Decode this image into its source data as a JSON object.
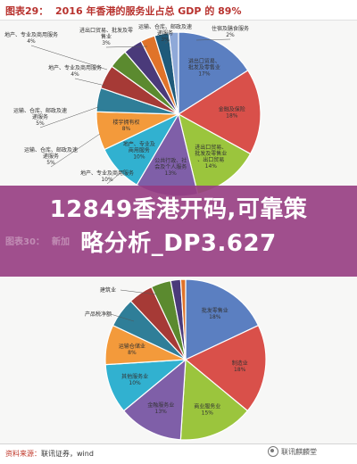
{
  "header": {
    "figure_label": "图表29：",
    "figure_title": "2016 年香港的服务业占总 GDP 的 89%"
  },
  "banner": {
    "line1": "12849香港开码,可靠策",
    "line2": "略分析_DP3.627"
  },
  "second_header": {
    "figure_label": "图表30：",
    "figure_title": "新加"
  },
  "footer": {
    "source_label": "资料来源：",
    "source_text": "联讯证券，wind",
    "watermark": "联讯麒麟堂"
  },
  "chart_data": [
    {
      "type": "pie",
      "title": "2016 年香港的服务业占总 GDP 的 89%",
      "slices": [
        {
          "label": "进出口贸易、批发及零售业",
          "value": 17,
          "value_label": "17%",
          "color": "#5b7fc1"
        },
        {
          "label": "金融及保险",
          "value": 18,
          "value_label": "18%",
          "color": "#d9504a"
        },
        {
          "label": "进出口贸易、批发及零售业、出口贸易",
          "value": 14,
          "value_label": "14%",
          "color": "#9bc53d"
        },
        {
          "label": "公共行政、社会及个人服务",
          "value": 13,
          "value_label": "13%",
          "color": "#7f5fa8"
        },
        {
          "label": "地产、专业及商用服务",
          "value": 10,
          "value_label": "10%",
          "color": "#31b1d0"
        },
        {
          "label": "楼宇拥有权",
          "value": 8,
          "value_label": "8%",
          "color": "#f39a3b"
        },
        {
          "label": "运输、仓库、邮政及速递服务",
          "value": 5,
          "value_label": "5%",
          "color": "#2f7e98"
        },
        {
          "label": "运输、仓库、邮政及速递服务",
          "value": 5,
          "value_label": "5%",
          "color": "#a63a36"
        },
        {
          "label": "地产、专业及商用服务",
          "value": 4,
          "value_label": "4%",
          "color": "#5b8a2f"
        },
        {
          "label": "地产、专业及商用服务",
          "value": 4,
          "value_label": "4%",
          "color": "#4a3a7a"
        },
        {
          "label": "进出口贸易、批发及零售业",
          "value": 3,
          "value_label": "3%",
          "color": "#e0732a"
        },
        {
          "label": "运输、仓库、邮政及速递服务",
          "value": 3,
          "value_label": "3%",
          "color": "#1f5a7a"
        },
        {
          "label": "住宿及膳食服务",
          "value": 2,
          "value_label": "2%",
          "color": "#8fa9d8"
        }
      ],
      "outside_labels": [
        {
          "text": "进出口贸易、批发及零售业",
          "value_label": "3%"
        },
        {
          "text": "运输、仓库、邮政及速递服务",
          "value_label": "3%"
        },
        {
          "text": "住宿及膳食服务",
          "value_label": "2%"
        },
        {
          "text": "地产、专业及商用服务",
          "value_label": "4%"
        },
        {
          "text": "地产、专业及商用服务",
          "value_label": "4%"
        },
        {
          "text": "运输、仓库、邮政及速递服务",
          "value_label": "5%"
        },
        {
          "text": "运输、仓库、邮政及速递服务",
          "value_label": "5%"
        },
        {
          "text": "地产、专业及商用服务",
          "value_label": "10%"
        }
      ],
      "legend": "none"
    },
    {
      "type": "pie",
      "title": "",
      "slices": [
        {
          "label": "批发零售业",
          "value": 18,
          "value_label": "18%",
          "color": "#5b7fc1"
        },
        {
          "label": "制造业",
          "value": 18,
          "value_label": "18%",
          "color": "#d9504a"
        },
        {
          "label": "商业服务业",
          "value": 15,
          "value_label": "15%",
          "color": "#9bc53d"
        },
        {
          "label": "金融服务业",
          "value": 13,
          "value_label": "13%",
          "color": "#7f5fa8"
        },
        {
          "label": "其他服务业",
          "value": 10,
          "value_label": "10%",
          "color": "#31b1d0"
        },
        {
          "label": "运输仓储业",
          "value": 8,
          "value_label": "8%",
          "color": "#f39a3b"
        },
        {
          "label": "产品税净额",
          "value": 6,
          "value_label": "",
          "color": "#2f7e98"
        },
        {
          "label": "",
          "value": 5,
          "value_label": "",
          "color": "#a63a36"
        },
        {
          "label": "建筑业",
          "value": 4,
          "value_label": "",
          "color": "#5b8a2f"
        },
        {
          "label": "",
          "value": 2,
          "value_label": "",
          "color": "#4a3a7a"
        },
        {
          "label": "",
          "value": 1,
          "value_label": "",
          "color": "#e0732a"
        }
      ],
      "legend": "none"
    }
  ]
}
